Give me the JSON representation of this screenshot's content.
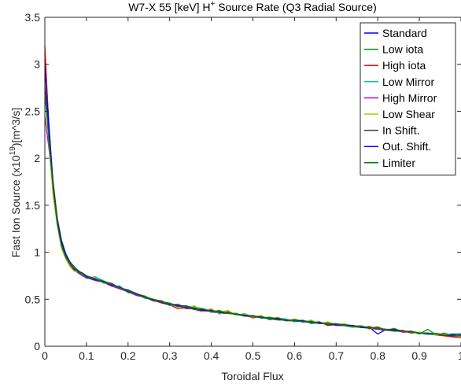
{
  "chart_data": {
    "type": "line",
    "title": {
      "main": "W7-X 55 [keV] H",
      "sup": "+",
      "rest": " Source Rate (Q3 Radial Source)"
    },
    "xlabel": "Toroidal Flux",
    "ylabel": {
      "main": "Fast Ion Source (x10",
      "sup": "19",
      "rest": ")[m^3/s]"
    },
    "xlim": [
      0,
      1
    ],
    "ylim": [
      0,
      3.5
    ],
    "xticks": [
      0,
      0.1,
      0.2,
      0.3,
      0.4,
      0.5,
      0.6,
      0.7,
      0.8,
      0.9,
      1
    ],
    "xtick_labels": [
      "0",
      "0.1",
      "0.2",
      "0.3",
      "0.4",
      "0.5",
      "0.6",
      "0.7",
      "0.8",
      "0.9",
      "1"
    ],
    "yticks": [
      0,
      0.5,
      1,
      1.5,
      2,
      2.5,
      3,
      3.5
    ],
    "ytick_labels": [
      "0",
      "0.5",
      "1",
      "1.5",
      "2",
      "2.5",
      "3",
      "3.5"
    ],
    "grid": false,
    "legend_position": "top-right",
    "x": [
      0.0,
      0.01,
      0.02,
      0.03,
      0.04,
      0.05,
      0.06,
      0.07,
      0.08,
      0.09,
      0.1,
      0.12,
      0.14,
      0.16,
      0.18,
      0.2,
      0.22,
      0.24,
      0.26,
      0.28,
      0.3,
      0.32,
      0.34,
      0.36,
      0.38,
      0.4,
      0.42,
      0.44,
      0.46,
      0.48,
      0.5,
      0.52,
      0.54,
      0.56,
      0.58,
      0.6,
      0.62,
      0.64,
      0.66,
      0.68,
      0.7,
      0.72,
      0.74,
      0.76,
      0.78,
      0.8,
      0.82,
      0.84,
      0.86,
      0.88,
      0.9,
      0.92,
      0.94,
      0.96,
      0.98,
      1.0
    ],
    "series": [
      {
        "name": "Standard",
        "color": "#0000ff",
        "values": [
          3.05,
          2.35,
          1.7,
          1.32,
          1.1,
          0.96,
          0.88,
          0.83,
          0.8,
          0.77,
          0.74,
          0.72,
          0.69,
          0.66,
          0.62,
          0.59,
          0.56,
          0.52,
          0.5,
          0.47,
          0.45,
          0.44,
          0.42,
          0.4,
          0.39,
          0.38,
          0.37,
          0.36,
          0.34,
          0.33,
          0.32,
          0.31,
          0.3,
          0.29,
          0.28,
          0.28,
          0.27,
          0.26,
          0.25,
          0.24,
          0.24,
          0.23,
          0.22,
          0.21,
          0.2,
          0.13,
          0.18,
          0.18,
          0.16,
          0.15,
          0.14,
          0.14,
          0.13,
          0.12,
          0.13,
          0.13
        ]
      },
      {
        "name": "Low iota",
        "color": "#009900",
        "values": [
          2.95,
          2.25,
          1.68,
          1.3,
          1.08,
          0.95,
          0.87,
          0.82,
          0.79,
          0.76,
          0.73,
          0.71,
          0.7,
          0.65,
          0.63,
          0.58,
          0.55,
          0.53,
          0.49,
          0.47,
          0.46,
          0.43,
          0.42,
          0.41,
          0.38,
          0.37,
          0.38,
          0.35,
          0.35,
          0.32,
          0.33,
          0.3,
          0.31,
          0.29,
          0.27,
          0.29,
          0.26,
          0.27,
          0.24,
          0.25,
          0.23,
          0.24,
          0.21,
          0.22,
          0.19,
          0.21,
          0.17,
          0.19,
          0.15,
          0.16,
          0.13,
          0.18,
          0.12,
          0.14,
          0.11,
          0.12
        ]
      },
      {
        "name": "High iota",
        "color": "#ff0000",
        "values": [
          3.2,
          2.3,
          1.75,
          1.35,
          1.12,
          0.98,
          0.9,
          0.84,
          0.8,
          0.78,
          0.74,
          0.71,
          0.68,
          0.66,
          0.61,
          0.59,
          0.55,
          0.53,
          0.48,
          0.48,
          0.44,
          0.4,
          0.41,
          0.39,
          0.37,
          0.39,
          0.35,
          0.37,
          0.33,
          0.34,
          0.3,
          0.32,
          0.29,
          0.3,
          0.27,
          0.27,
          0.26,
          0.25,
          0.26,
          0.22,
          0.23,
          0.22,
          0.21,
          0.2,
          0.21,
          0.18,
          0.17,
          0.16,
          0.17,
          0.14,
          0.15,
          0.13,
          0.12,
          0.11,
          0.1,
          0.09
        ]
      },
      {
        "name": "Low Mirror",
        "color": "#00bfbf",
        "values": [
          2.9,
          2.2,
          1.72,
          1.34,
          1.09,
          0.97,
          0.89,
          0.84,
          0.81,
          0.76,
          0.72,
          0.74,
          0.7,
          0.64,
          0.64,
          0.57,
          0.56,
          0.51,
          0.5,
          0.46,
          0.45,
          0.44,
          0.41,
          0.42,
          0.4,
          0.36,
          0.36,
          0.38,
          0.33,
          0.34,
          0.31,
          0.32,
          0.28,
          0.3,
          0.29,
          0.26,
          0.28,
          0.24,
          0.25,
          0.23,
          0.24,
          0.22,
          0.2,
          0.21,
          0.19,
          0.19,
          0.18,
          0.17,
          0.16,
          0.15,
          0.15,
          0.13,
          0.14,
          0.12,
          0.12,
          0.11
        ]
      },
      {
        "name": "High Mirror",
        "color": "#bf00bf",
        "values": [
          2.45,
          2.1,
          1.66,
          1.31,
          1.06,
          0.94,
          0.86,
          0.81,
          0.78,
          0.75,
          0.73,
          0.7,
          0.68,
          0.64,
          0.61,
          0.58,
          0.54,
          0.52,
          0.49,
          0.46,
          0.44,
          0.43,
          0.4,
          0.4,
          0.38,
          0.37,
          0.35,
          0.35,
          0.34,
          0.32,
          0.31,
          0.31,
          0.29,
          0.28,
          0.28,
          0.27,
          0.26,
          0.26,
          0.24,
          0.24,
          0.22,
          0.22,
          0.21,
          0.2,
          0.19,
          0.18,
          0.17,
          0.17,
          0.15,
          0.15,
          0.14,
          0.13,
          0.13,
          0.12,
          0.11,
          0.11
        ]
      },
      {
        "name": "Low Shear",
        "color": "#bfbf00",
        "values": [
          2.85,
          2.15,
          1.6,
          1.28,
          1.04,
          0.93,
          0.85,
          0.8,
          0.79,
          0.78,
          0.74,
          0.73,
          0.67,
          0.67,
          0.62,
          0.6,
          0.55,
          0.54,
          0.48,
          0.49,
          0.43,
          0.45,
          0.41,
          0.43,
          0.37,
          0.4,
          0.34,
          0.38,
          0.33,
          0.35,
          0.31,
          0.33,
          0.28,
          0.31,
          0.27,
          0.29,
          0.25,
          0.28,
          0.24,
          0.26,
          0.23,
          0.24,
          0.2,
          0.22,
          0.18,
          0.21,
          0.17,
          0.18,
          0.16,
          0.15,
          0.15,
          0.13,
          0.12,
          0.13,
          0.11,
          0.1
        ]
      },
      {
        "name": "In Shift.",
        "color": "#404040",
        "values": [
          2.75,
          2.28,
          1.73,
          1.36,
          1.13,
          0.99,
          0.9,
          0.85,
          0.8,
          0.78,
          0.75,
          0.72,
          0.69,
          0.67,
          0.62,
          0.6,
          0.56,
          0.53,
          0.5,
          0.48,
          0.45,
          0.43,
          0.43,
          0.4,
          0.39,
          0.38,
          0.36,
          0.36,
          0.34,
          0.33,
          0.32,
          0.31,
          0.3,
          0.3,
          0.27,
          0.28,
          0.27,
          0.26,
          0.25,
          0.23,
          0.23,
          0.23,
          0.21,
          0.21,
          0.19,
          0.2,
          0.17,
          0.18,
          0.16,
          0.16,
          0.14,
          0.14,
          0.13,
          0.12,
          0.12,
          0.11
        ]
      },
      {
        "name": "Out. Shift.",
        "color": "#0000ff",
        "values": [
          2.98,
          2.32,
          1.69,
          1.33,
          1.11,
          0.97,
          0.89,
          0.82,
          0.8,
          0.77,
          0.74,
          0.71,
          0.69,
          0.65,
          0.63,
          0.58,
          0.56,
          0.52,
          0.49,
          0.47,
          0.44,
          0.44,
          0.41,
          0.4,
          0.38,
          0.38,
          0.36,
          0.35,
          0.34,
          0.33,
          0.32,
          0.31,
          0.29,
          0.29,
          0.28,
          0.27,
          0.27,
          0.25,
          0.25,
          0.24,
          0.23,
          0.22,
          0.22,
          0.2,
          0.2,
          0.19,
          0.18,
          0.17,
          0.16,
          0.15,
          0.14,
          0.13,
          0.13,
          0.12,
          0.11,
          0.11
        ]
      },
      {
        "name": "Limiter",
        "color": "#007f00",
        "values": [
          2.7,
          2.18,
          1.67,
          1.3,
          1.07,
          0.95,
          0.88,
          0.83,
          0.79,
          0.77,
          0.73,
          0.72,
          0.68,
          0.66,
          0.62,
          0.59,
          0.55,
          0.52,
          0.5,
          0.47,
          0.45,
          0.42,
          0.42,
          0.39,
          0.4,
          0.37,
          0.37,
          0.35,
          0.34,
          0.32,
          0.32,
          0.3,
          0.3,
          0.28,
          0.28,
          0.27,
          0.26,
          0.26,
          0.24,
          0.24,
          0.24,
          0.22,
          0.21,
          0.21,
          0.2,
          0.19,
          0.18,
          0.16,
          0.16,
          0.15,
          0.14,
          0.14,
          0.13,
          0.12,
          0.12,
          0.11
        ]
      }
    ]
  }
}
